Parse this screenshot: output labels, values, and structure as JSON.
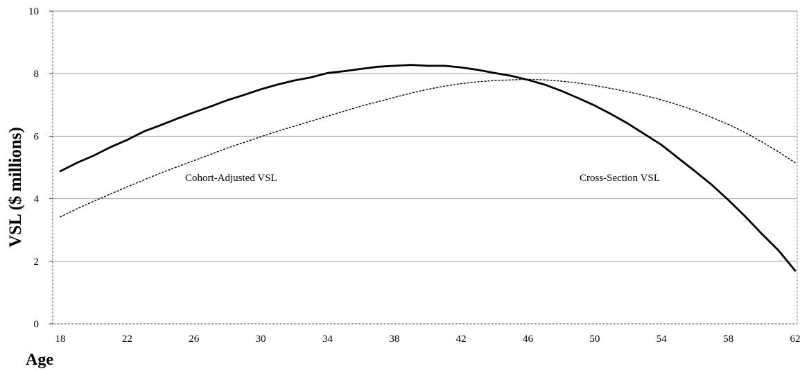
{
  "chart_data": {
    "type": "line",
    "xlabel": "Age",
    "ylabel": "VSL ($ millions)",
    "xlim": [
      18,
      62
    ],
    "ylim": [
      0,
      10
    ],
    "x_ticks": [
      18,
      22,
      26,
      30,
      34,
      38,
      42,
      46,
      50,
      54,
      58,
      62
    ],
    "y_ticks": [
      0,
      2,
      4,
      6,
      8,
      10
    ],
    "grid": "horizontal",
    "legend": "none",
    "series": [
      {
        "name": "Cohort-Adjusted VSL",
        "style": "solid",
        "color": "#000000",
        "x": [
          18,
          19,
          20,
          21,
          22,
          23,
          24,
          25,
          26,
          27,
          28,
          29,
          30,
          31,
          32,
          33,
          34,
          35,
          36,
          37,
          38,
          39,
          40,
          41,
          42,
          43,
          44,
          45,
          46,
          47,
          48,
          49,
          50,
          51,
          52,
          53,
          54,
          55,
          56,
          57,
          58,
          59,
          60,
          61,
          62
        ],
        "values": [
          4.88,
          5.15,
          5.38,
          5.65,
          5.88,
          6.15,
          6.35,
          6.56,
          6.76,
          6.95,
          7.15,
          7.32,
          7.5,
          7.65,
          7.78,
          7.88,
          8.02,
          8.08,
          8.15,
          8.22,
          8.25,
          8.28,
          8.25,
          8.25,
          8.2,
          8.12,
          8.02,
          7.93,
          7.8,
          7.65,
          7.45,
          7.22,
          6.98,
          6.7,
          6.4,
          6.06,
          5.72,
          5.3,
          4.88,
          4.45,
          3.96,
          3.44,
          2.88,
          2.35,
          1.7
        ]
      },
      {
        "name": "Cross-Section VSL",
        "style": "dotted",
        "color": "#000000",
        "x": [
          18,
          19,
          20,
          21,
          22,
          23,
          24,
          25,
          26,
          27,
          28,
          29,
          30,
          31,
          32,
          33,
          34,
          35,
          36,
          37,
          38,
          39,
          40,
          41,
          42,
          43,
          44,
          45,
          46,
          47,
          48,
          49,
          50,
          51,
          52,
          53,
          54,
          55,
          56,
          57,
          58,
          59,
          60,
          61,
          62
        ],
        "values": [
          3.42,
          3.68,
          3.92,
          4.15,
          4.38,
          4.6,
          4.82,
          5.02,
          5.22,
          5.42,
          5.62,
          5.8,
          5.98,
          6.16,
          6.32,
          6.48,
          6.64,
          6.8,
          6.96,
          7.1,
          7.24,
          7.38,
          7.5,
          7.6,
          7.68,
          7.74,
          7.78,
          7.8,
          7.82,
          7.8,
          7.76,
          7.7,
          7.62,
          7.52,
          7.42,
          7.3,
          7.16,
          7.0,
          6.82,
          6.6,
          6.38,
          6.12,
          5.82,
          5.5,
          5.15
        ]
      }
    ],
    "annotations": [
      {
        "text": "Cohort-Adjusted VSL",
        "series": 0
      },
      {
        "text": "Cross-Section VSL",
        "series": 1
      }
    ]
  }
}
